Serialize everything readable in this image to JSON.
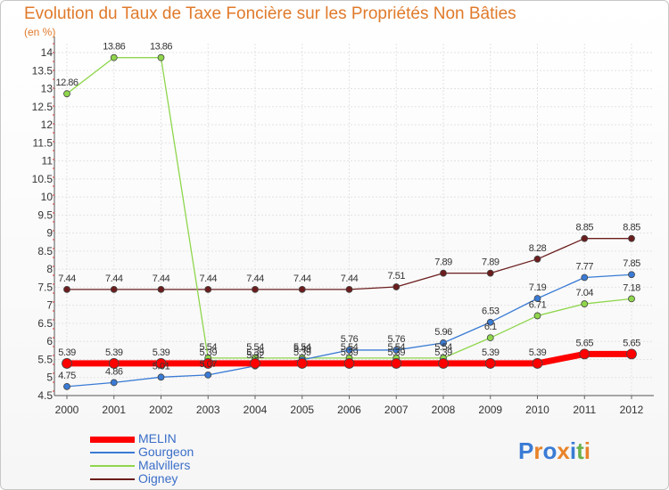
{
  "title": "Evolution du Taux de Taxe Foncière sur les Propriétés Non Bâties",
  "unit": "(en %)",
  "logo": {
    "text": "Proxiti",
    "colors": [
      "#3a7bd5",
      "#e8832a",
      "#3a7bd5",
      "#e8832a",
      "#3a7bd5",
      "#6ab04c",
      "#e8832a"
    ]
  },
  "chart_data": {
    "type": "line",
    "x": [
      "2000",
      "2001",
      "2002",
      "2003",
      "2004",
      "2005",
      "2006",
      "2007",
      "2008",
      "2009",
      "2010",
      "2011",
      "2012"
    ],
    "ylim": [
      4.5,
      14
    ],
    "yticks": [
      "4.5",
      "5",
      "5.5",
      "6",
      "6.5",
      "7",
      "7.5",
      "8",
      "8.5",
      "9",
      "9.5",
      "10",
      "10.5",
      "11",
      "11.5",
      "12",
      "12.5",
      "13",
      "13.5",
      "14"
    ],
    "grid": true,
    "legend_position": "bottom-left",
    "series": [
      {
        "name": "Oigney",
        "color": "#6b1d1d",
        "width": 1.3,
        "marker": 3.5,
        "values": [
          7.44,
          7.44,
          7.44,
          7.44,
          7.44,
          7.44,
          7.44,
          7.51,
          7.89,
          7.89,
          8.28,
          8.85,
          8.85
        ],
        "labels": [
          "7.44",
          "7.44",
          "7.44",
          "7.44",
          "7.44",
          "7.44",
          "7.44",
          "7.51",
          "7.89",
          "7.89",
          "8.28",
          "8.85",
          "8.85"
        ]
      },
      {
        "name": "Malvillers",
        "color": "#8fd64c",
        "width": 1.3,
        "marker": 3.5,
        "values": [
          12.86,
          13.86,
          13.86,
          5.54,
          5.54,
          5.54,
          5.54,
          5.54,
          5.54,
          6.1,
          6.71,
          7.04,
          7.18
        ],
        "labels": [
          "12.86",
          "13.86",
          "13.86",
          "5.54",
          "5.54",
          "5.54",
          "5.54",
          "5.54",
          "5.54",
          "6.1",
          "6.71",
          "7.04",
          "7.18"
        ]
      },
      {
        "name": "Gourgeon",
        "color": "#3a7bd5",
        "width": 1.3,
        "marker": 3.5,
        "values": [
          4.75,
          4.86,
          5.01,
          5.07,
          5.32,
          5.49,
          5.76,
          5.76,
          5.96,
          6.53,
          7.19,
          7.77,
          7.85
        ],
        "labels": [
          "4.75",
          "4.86",
          "5.01",
          "5.07",
          "5.32",
          "5.49",
          "5.76",
          "5.76",
          "5.96",
          "6.53",
          "7.19",
          "7.77",
          "7.85"
        ]
      },
      {
        "name": "MELIN",
        "color": "#ff0000",
        "width": 7,
        "marker": 5.5,
        "values": [
          5.39,
          5.39,
          5.39,
          5.39,
          5.39,
          5.39,
          5.39,
          5.39,
          5.39,
          5.39,
          5.39,
          5.65,
          5.65
        ],
        "labels": [
          "5.39",
          "5.39",
          "5.39",
          "5.39",
          "5.39",
          "5.39",
          "5.39",
          "5.39",
          "5.39",
          "5.39",
          "5.39",
          "5.65",
          "5.65"
        ]
      }
    ],
    "legend": [
      "MELIN",
      "Gourgeon",
      "Malvillers",
      "Oigney"
    ]
  }
}
